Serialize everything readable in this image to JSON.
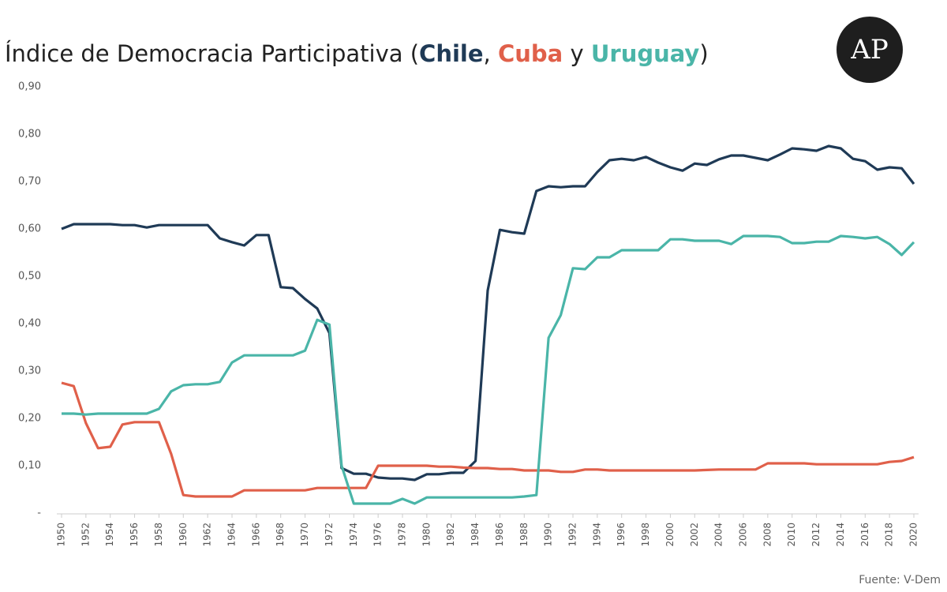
{
  "chart_data": {
    "type": "line",
    "title_parts": [
      "Índice de Democracia Participativa (",
      ", ",
      " y ",
      ")"
    ],
    "logo": "AP",
    "source": "Fuente: V-Dem",
    "x": [
      1950,
      1951,
      1952,
      1953,
      1954,
      1955,
      1956,
      1957,
      1958,
      1959,
      1960,
      1961,
      1962,
      1963,
      1964,
      1965,
      1966,
      1967,
      1968,
      1969,
      1970,
      1971,
      1972,
      1973,
      1974,
      1975,
      1976,
      1977,
      1978,
      1979,
      1980,
      1981,
      1982,
      1983,
      1984,
      1985,
      1986,
      1987,
      1988,
      1989,
      1990,
      1991,
      1992,
      1993,
      1994,
      1995,
      1996,
      1997,
      1998,
      1999,
      2000,
      2001,
      2002,
      2003,
      2004,
      2005,
      2006,
      2007,
      2008,
      2009,
      2010,
      2011,
      2012,
      2013,
      2014,
      2015,
      2016,
      2017,
      2018,
      2019,
      2020
    ],
    "xlim": [
      1950,
      2020
    ],
    "xticks": [
      1950,
      1952,
      1954,
      1956,
      1958,
      1960,
      1962,
      1964,
      1966,
      1968,
      1970,
      1972,
      1974,
      1976,
      1978,
      1980,
      1982,
      1984,
      1986,
      1988,
      1990,
      1992,
      1994,
      1996,
      1998,
      2000,
      2002,
      2004,
      2006,
      2008,
      2010,
      2012,
      2014,
      2016,
      2018,
      2020
    ],
    "ylim": [
      0,
      0.9
    ],
    "yticks": [
      {
        "value": 0,
        "label": "-"
      },
      {
        "value": 0.1,
        "label": "0,10"
      },
      {
        "value": 0.2,
        "label": "0,20"
      },
      {
        "value": 0.3,
        "label": "0,30"
      },
      {
        "value": 0.4,
        "label": "0,40"
      },
      {
        "value": 0.5,
        "label": "0,50"
      },
      {
        "value": 0.6,
        "label": "0,60"
      },
      {
        "value": 0.7,
        "label": "0,70"
      },
      {
        "value": 0.8,
        "label": "0,80"
      },
      {
        "value": 0.9,
        "label": "0,90"
      }
    ],
    "grid": false,
    "series": [
      {
        "name": "Chile",
        "color": "#1f3a56",
        "values": [
          0.6,
          0.61,
          0.61,
          0.61,
          0.61,
          0.608,
          0.608,
          0.603,
          0.608,
          0.608,
          0.608,
          0.608,
          0.608,
          0.58,
          0.572,
          0.565,
          0.587,
          0.587,
          0.477,
          0.475,
          0.452,
          0.432,
          0.38,
          0.095,
          0.083,
          0.083,
          0.075,
          0.073,
          0.073,
          0.07,
          0.082,
          0.082,
          0.085,
          0.085,
          0.11,
          0.47,
          0.598,
          0.593,
          0.59,
          0.68,
          0.69,
          0.688,
          0.69,
          0.69,
          0.72,
          0.745,
          0.748,
          0.745,
          0.752,
          0.74,
          0.73,
          0.723,
          0.738,
          0.735,
          0.747,
          0.755,
          0.755,
          0.75,
          0.745,
          0.757,
          0.77,
          0.768,
          0.765,
          0.775,
          0.77,
          0.748,
          0.743,
          0.725,
          0.73,
          0.728,
          0.695
        ]
      },
      {
        "name": "Cuba",
        "color": "#e0604a",
        "values": [
          0.275,
          0.268,
          0.19,
          0.137,
          0.14,
          0.187,
          0.192,
          0.192,
          0.192,
          0.125,
          0.038,
          0.035,
          0.035,
          0.035,
          0.035,
          0.048,
          0.048,
          0.048,
          0.048,
          0.048,
          0.048,
          0.053,
          0.053,
          0.053,
          0.053,
          0.053,
          0.1,
          0.1,
          0.1,
          0.1,
          0.1,
          0.098,
          0.098,
          0.096,
          0.095,
          0.095,
          0.093,
          0.093,
          0.09,
          0.09,
          0.09,
          0.087,
          0.087,
          0.092,
          0.092,
          0.09,
          0.09,
          0.09,
          0.09,
          0.09,
          0.09,
          0.09,
          0.09,
          0.091,
          0.092,
          0.092,
          0.092,
          0.092,
          0.105,
          0.105,
          0.105,
          0.105,
          0.103,
          0.103,
          0.103,
          0.103,
          0.103,
          0.103,
          0.108,
          0.11,
          0.118
        ]
      },
      {
        "name": "Uruguay",
        "color": "#4ab5a8",
        "values": [
          0.21,
          0.21,
          0.208,
          0.21,
          0.21,
          0.21,
          0.21,
          0.21,
          0.22,
          0.257,
          0.27,
          0.272,
          0.272,
          0.277,
          0.318,
          0.333,
          0.333,
          0.333,
          0.333,
          0.333,
          0.343,
          0.408,
          0.398,
          0.1,
          0.02,
          0.02,
          0.02,
          0.02,
          0.03,
          0.02,
          0.033,
          0.033,
          0.033,
          0.033,
          0.033,
          0.033,
          0.033,
          0.033,
          0.035,
          0.038,
          0.37,
          0.418,
          0.517,
          0.515,
          0.54,
          0.54,
          0.555,
          0.555,
          0.555,
          0.555,
          0.578,
          0.578,
          0.575,
          0.575,
          0.575,
          0.568,
          0.585,
          0.585,
          0.585,
          0.583,
          0.57,
          0.57,
          0.573,
          0.573,
          0.585,
          0.583,
          0.58,
          0.583,
          0.568,
          0.545,
          0.572
        ]
      }
    ]
  }
}
